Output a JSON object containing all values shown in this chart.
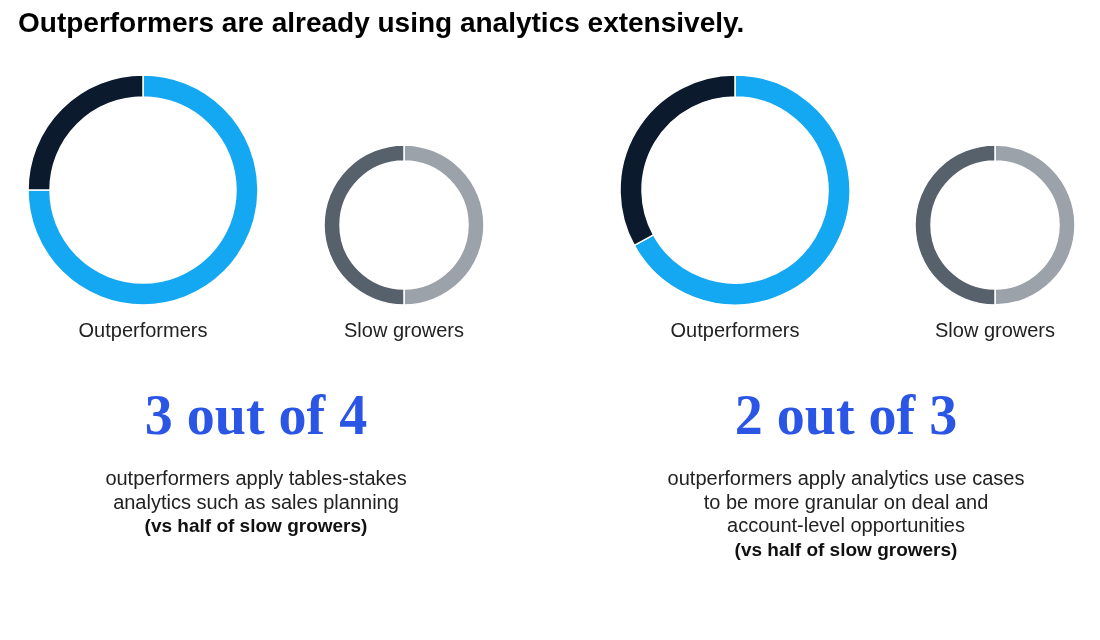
{
  "chart_data": [
    {
      "type": "other",
      "title": "Outperformers are already using analytics extensively."
    },
    {
      "type": "donut",
      "title": "Outperformers",
      "categories": [
        null,
        null
      ],
      "values": [
        75,
        25
      ],
      "colors": [
        "#14a7f2",
        "#0b1a2d"
      ]
    },
    {
      "type": "donut",
      "title": "Slow growers",
      "categories": [
        null,
        null
      ],
      "values": [
        50,
        50
      ],
      "colors": [
        "#9ca2a9",
        "#56616c"
      ]
    },
    {
      "type": "other",
      "annotations": [
        "3 out of 4",
        "outperformers apply tables-stakes analytics such as sales planning",
        "(vs half of slow growers)"
      ]
    },
    {
      "type": "donut",
      "title": "Outperformers",
      "categories": [
        null,
        null
      ],
      "values": [
        67,
        33
      ],
      "colors": [
        "#14a7f2",
        "#0b1a2d"
      ]
    },
    {
      "type": "donut",
      "title": "Slow growers",
      "categories": [
        null,
        null
      ],
      "values": [
        50,
        50
      ],
      "colors": [
        "#9ca2a9",
        "#56616c"
      ]
    },
    {
      "type": "other",
      "annotations": [
        "2 out of 3",
        "outperformers apply analytics use cases to be more granular on deal and account-level opportunities",
        "(vs half of slow growers)"
      ]
    }
  ]
}
